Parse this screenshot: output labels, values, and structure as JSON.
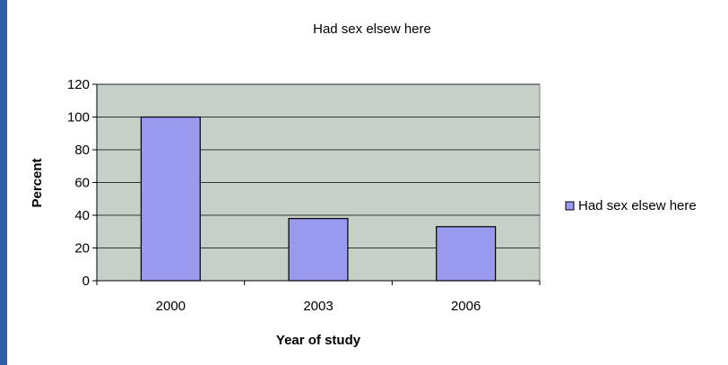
{
  "chart_data": {
    "type": "bar",
    "title": "Had  sex elsew here",
    "categories": [
      "2000",
      "2003",
      "2006"
    ],
    "series": [
      {
        "name": "Had  sex elsew here",
        "values": [
          100,
          38,
          33
        ]
      }
    ],
    "xlabel": "Year of study",
    "ylabel": "Percent",
    "ylim": [
      0,
      120
    ],
    "yticks": [
      0,
      20,
      40,
      60,
      80,
      100,
      120
    ],
    "grid": true,
    "legend_position": "right",
    "colors": {
      "bar_fill": "#9999ee",
      "bar_stroke": "#000000",
      "plot_bg": "#c7d0c7",
      "grid": "#000000",
      "slide_bg": "#2f5ea8"
    }
  }
}
